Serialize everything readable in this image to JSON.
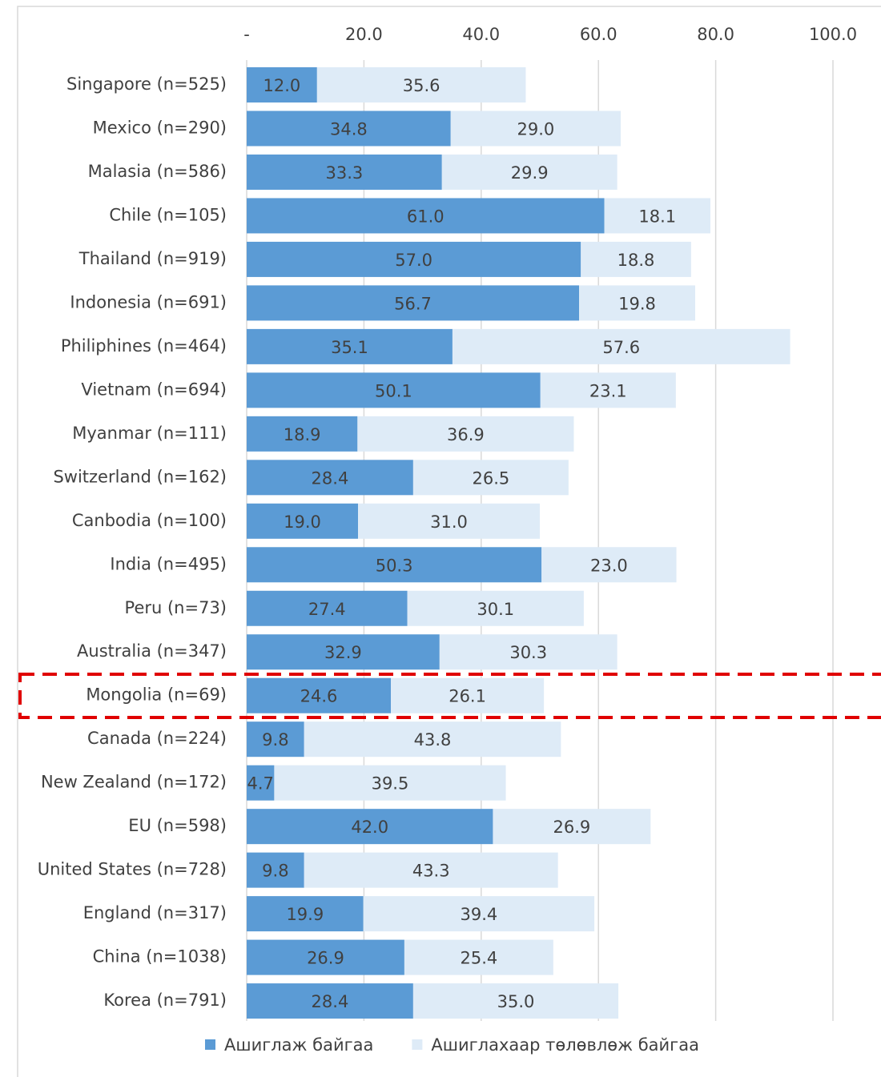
{
  "chart_data": {
    "type": "stacked_bar_horizontal",
    "categories": [
      "Singapore (n=525)",
      "Mexico (n=290)",
      "Malasia (n=586)",
      "Chile (n=105)",
      "Thailand (n=919)",
      "Indonesia (n=691)",
      "Philiphines (n=464)",
      "Vietnam (n=694)",
      "Myanmar (n=111)",
      "Switzerland (n=162)",
      "Canbodia (n=100)",
      "India (n=495)",
      "Peru (n=73)",
      "Australia (n=347)",
      "Mongolia (n=69)",
      "Canada (n=224)",
      "New Zealand (n=172)",
      "EU (n=598)",
      "United States (n=728)",
      "England (n=317)",
      "China (n=1038)",
      "Korea (n=791)"
    ],
    "series": [
      {
        "name": "Ашиглаж байгаа",
        "color": "#5b9bd5",
        "values": [
          12.0,
          34.8,
          33.3,
          61.0,
          57.0,
          56.7,
          35.1,
          50.1,
          18.9,
          28.4,
          19.0,
          50.3,
          27.4,
          32.9,
          24.6,
          9.8,
          4.7,
          42.0,
          9.8,
          19.9,
          26.9,
          28.4
        ],
        "value_labels": [
          "12.0",
          "34.8",
          "33.3",
          "61.0",
          "57.0",
          "56.7",
          "35.1",
          "50.1",
          "18.9",
          "28.4",
          "19.0",
          "50.3",
          "27.4",
          "32.9",
          "24.6",
          "9.8",
          "4.7",
          "42.0",
          "9.8",
          "19.9",
          "26.9",
          "28.4"
        ]
      },
      {
        "name": "Ашиглахаар төлөвлөж байгаа",
        "color": "#deebf7",
        "values": [
          35.6,
          29.0,
          29.9,
          18.1,
          18.8,
          19.8,
          57.6,
          23.1,
          36.9,
          26.5,
          31.0,
          23.0,
          30.1,
          30.3,
          26.1,
          43.8,
          39.5,
          26.9,
          43.3,
          39.4,
          25.4,
          35.0
        ],
        "value_labels": [
          "35.6",
          "29.0",
          "29.9",
          "18.1",
          "18.8",
          "19.8",
          "57.6",
          "23.1",
          "36.9",
          "26.5",
          "31.0",
          "23.0",
          "30.1",
          "30.3",
          "26.1",
          "43.8",
          "39.5",
          "26.9",
          "43.3",
          "39.4",
          "25.4",
          "35.0"
        ]
      }
    ],
    "xlim": [
      0,
      100
    ],
    "xticks": [
      {
        "value": 0,
        "label": "-"
      },
      {
        "value": 20,
        "label": "20.0"
      },
      {
        "value": 40,
        "label": "40.0"
      },
      {
        "value": 60,
        "label": "60.0"
      },
      {
        "value": 80,
        "label": "80.0"
      },
      {
        "value": 100,
        "label": "100.0"
      }
    ],
    "grid": true,
    "legend": "bottom"
  }
}
